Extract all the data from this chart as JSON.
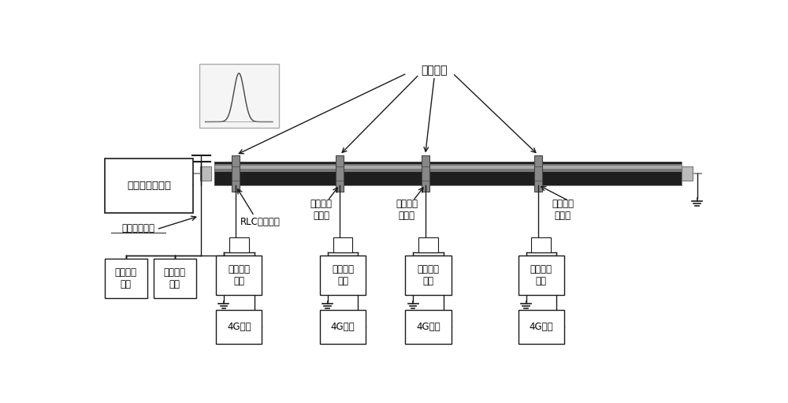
{
  "bg_color": "#ffffff",
  "line_color": "#1a1a1a",
  "cable_dark": "#222222",
  "cable_mid": "#555555",
  "cable_light": "#888888",
  "joint_color": "#999999",
  "connector_color": "#cccccc",
  "font_size": 9,
  "labels": {
    "pulse_gen": "脉冲信号发生器",
    "hv_cap": "高压耦合电容",
    "rlc": "RLC耦合电路",
    "cable_joint": "电缆接头",
    "sensor": "预埋容性\n传感器",
    "sig_recv": "信号接收\n装置",
    "sig_acq": "信号采集\n模块",
    "4g": "4G模块"
  }
}
